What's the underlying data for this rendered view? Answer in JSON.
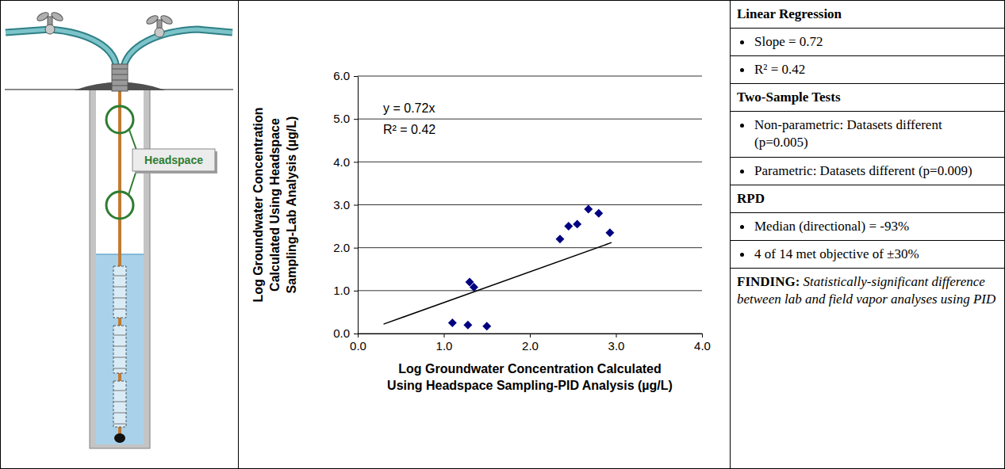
{
  "diagram": {
    "label": "Headspace"
  },
  "chart_data": {
    "type": "scatter",
    "x_label": "Log Groundwater Concentration Calculated Using Headspace Sampling-PID Analysis (µg/L)",
    "y_label": "Log Groundwater Concentration Calculated Using Headspace Sampling-Lab Analysis (µg/L)",
    "x": [
      1.1,
      1.28,
      1.5,
      1.3,
      1.35,
      2.35,
      2.45,
      2.55,
      2.68,
      2.8,
      2.93
    ],
    "values": [
      0.25,
      0.2,
      0.17,
      1.2,
      1.08,
      2.2,
      2.5,
      2.55,
      2.9,
      2.8,
      2.35
    ],
    "color": "#000080",
    "marker": "diamond",
    "trendline": {
      "x": [
        0.3,
        2.95
      ],
      "values": [
        0.22,
        2.12
      ]
    },
    "annotations": [
      "y = 0.72x",
      "R² = 0.42"
    ],
    "xlim": [
      0,
      4
    ],
    "xticks": [
      {
        "value": 0,
        "label": "0.0"
      },
      {
        "value": 1,
        "label": "1.0"
      },
      {
        "value": 2,
        "label": "2.0"
      },
      {
        "value": 3,
        "label": "3.0"
      },
      {
        "value": 4,
        "label": "4.0"
      }
    ],
    "ylim": [
      0,
      6
    ],
    "yticks": [
      {
        "value": 0,
        "label": "0.0"
      },
      {
        "value": 1,
        "label": "1.0"
      },
      {
        "value": 2,
        "label": "2.0"
      },
      {
        "value": 3,
        "label": "3.0"
      },
      {
        "value": 4,
        "label": "4.0"
      },
      {
        "value": 5,
        "label": "5.0"
      },
      {
        "value": 6,
        "label": "6.0"
      }
    ],
    "grid": true
  },
  "table": {
    "sections": [
      {
        "heading": "Linear Regression",
        "items": [
          "Slope = 0.72",
          "R² = 0.42"
        ]
      },
      {
        "heading": "Two-Sample Tests",
        "items": [
          "Non-parametric: Datasets different (p=0.005)",
          "Parametric: Datasets different (p=0.009)"
        ]
      },
      {
        "heading": "RPD",
        "items": [
          "Median (directional) = -93%",
          "4 of 14 met objective of ±30%"
        ]
      }
    ],
    "finding": {
      "label": "FINDING:",
      "text": "Statistically-significant difference between lab and field vapor analyses using PID"
    }
  }
}
